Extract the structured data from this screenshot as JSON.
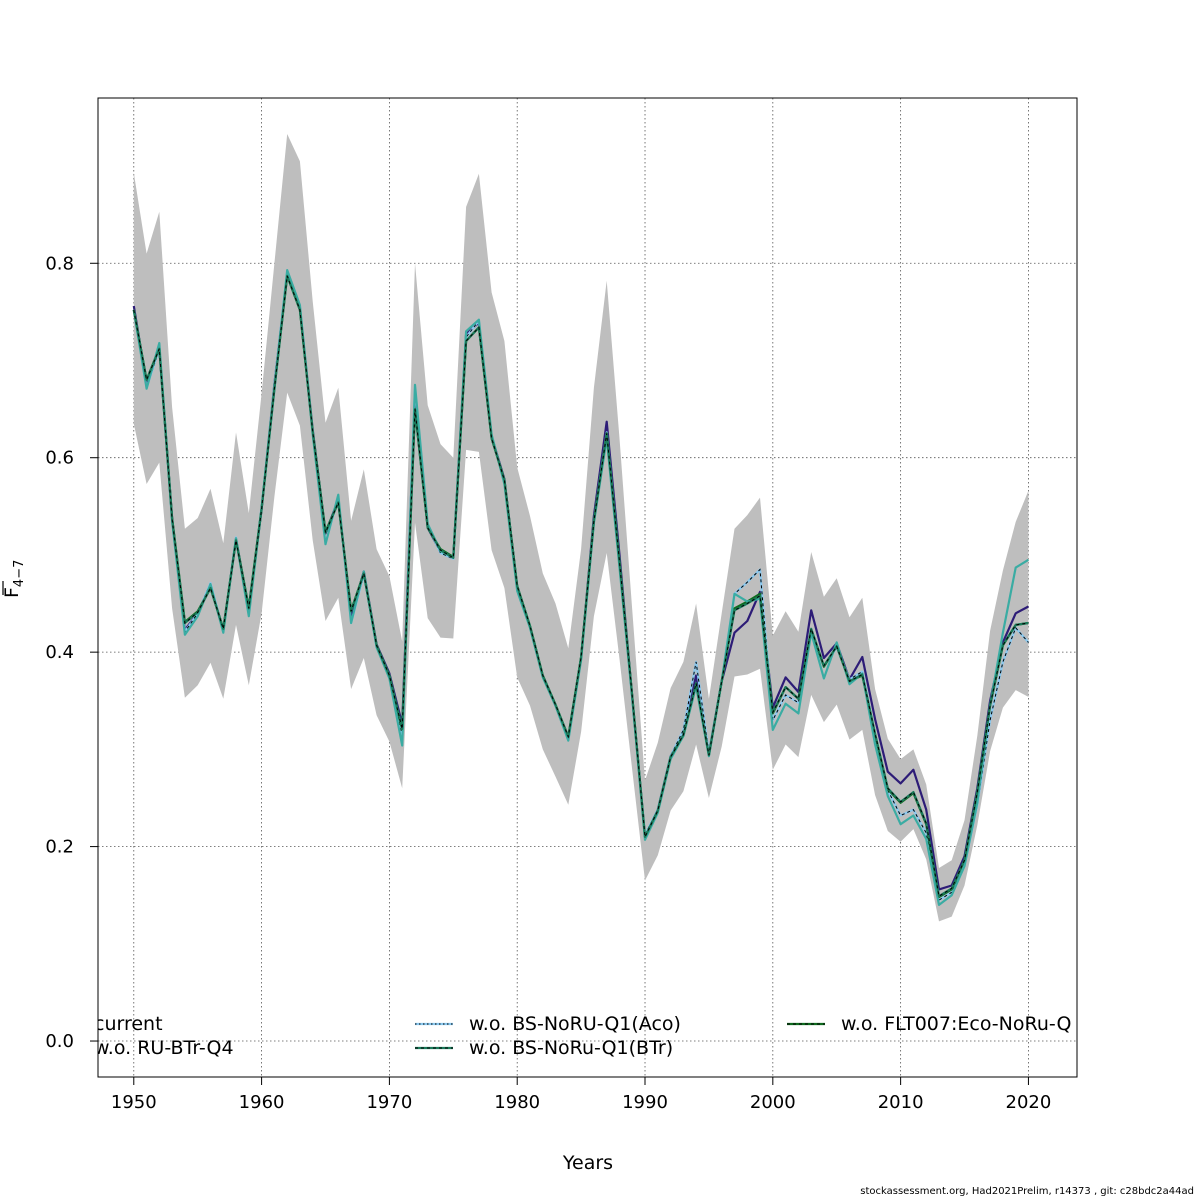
{
  "chart_data": {
    "type": "line",
    "title": "",
    "xlabel": "Years",
    "ylabel_main": "F",
    "ylabel_sub": "4−7",
    "xlim": [
      1947.2,
      2023.8
    ],
    "ylim": [
      -0.037,
      0.97
    ],
    "xticks": [
      1950,
      1960,
      1970,
      1980,
      1990,
      2000,
      2010,
      2020
    ],
    "yticks": [
      0.0,
      0.2,
      0.4,
      0.6,
      0.8
    ],
    "ytick_labels": [
      "0.0",
      "0.2",
      "0.4",
      "0.6",
      "0.8"
    ],
    "grid": true,
    "x": [
      1950,
      1951,
      1952,
      1953,
      1954,
      1955,
      1956,
      1957,
      1958,
      1959,
      1960,
      1961,
      1962,
      1963,
      1964,
      1965,
      1966,
      1967,
      1968,
      1969,
      1970,
      1971,
      1972,
      1973,
      1974,
      1975,
      1976,
      1977,
      1978,
      1979,
      1980,
      1981,
      1982,
      1983,
      1984,
      1985,
      1986,
      1987,
      1988,
      1989,
      1990,
      1991,
      1992,
      1993,
      1994,
      1995,
      1996,
      1997,
      1998,
      1999,
      2000,
      2001,
      2002,
      2003,
      2004,
      2005,
      2006,
      2007,
      2008,
      2009,
      2010,
      2011,
      2012,
      2013,
      2014,
      2015,
      2016,
      2017,
      2018,
      2019,
      2020
    ],
    "band": {
      "color": "#bebebe",
      "lower": [
        0.635,
        0.573,
        0.595,
        0.445,
        0.353,
        0.366,
        0.389,
        0.352,
        0.428,
        0.366,
        0.44,
        0.56,
        0.667,
        0.633,
        0.515,
        0.432,
        0.456,
        0.362,
        0.394,
        0.335,
        0.308,
        0.26,
        0.533,
        0.435,
        0.415,
        0.414,
        0.608,
        0.606,
        0.505,
        0.466,
        0.374,
        0.345,
        0.3,
        0.272,
        0.243,
        0.318,
        0.437,
        0.502,
        0.393,
        0.279,
        0.165,
        0.191,
        0.237,
        0.257,
        0.305,
        0.25,
        0.303,
        0.375,
        0.377,
        0.383,
        0.279,
        0.305,
        0.292,
        0.356,
        0.328,
        0.346,
        0.31,
        0.32,
        0.253,
        0.216,
        0.205,
        0.218,
        0.187,
        0.123,
        0.128,
        0.16,
        0.222,
        0.298,
        0.343,
        0.361,
        0.354
      ],
      "upper": [
        0.893,
        0.81,
        0.853,
        0.652,
        0.527,
        0.538,
        0.568,
        0.512,
        0.626,
        0.543,
        0.666,
        0.8,
        0.933,
        0.905,
        0.761,
        0.636,
        0.672,
        0.535,
        0.588,
        0.506,
        0.478,
        0.411,
        0.8,
        0.654,
        0.614,
        0.6,
        0.858,
        0.892,
        0.77,
        0.72,
        0.59,
        0.54,
        0.481,
        0.45,
        0.404,
        0.506,
        0.672,
        0.782,
        0.62,
        0.444,
        0.268,
        0.307,
        0.363,
        0.39,
        0.45,
        0.352,
        0.44,
        0.527,
        0.541,
        0.559,
        0.417,
        0.442,
        0.421,
        0.503,
        0.457,
        0.476,
        0.436,
        0.456,
        0.362,
        0.311,
        0.29,
        0.3,
        0.264,
        0.178,
        0.186,
        0.227,
        0.314,
        0.422,
        0.484,
        0.534,
        0.566
      ]
    },
    "series": [
      {
        "name": "current",
        "color": "#2d1c77",
        "dashed": false,
        "legend_style": "solid",
        "values": [
          0.756,
          0.676,
          0.713,
          0.538,
          0.423,
          0.44,
          0.468,
          0.422,
          0.517,
          0.443,
          0.547,
          0.676,
          0.789,
          0.754,
          0.629,
          0.522,
          0.557,
          0.437,
          0.483,
          0.408,
          0.378,
          0.326,
          0.665,
          0.528,
          0.503,
          0.497,
          0.727,
          0.739,
          0.622,
          0.578,
          0.467,
          0.426,
          0.375,
          0.345,
          0.311,
          0.394,
          0.54,
          0.637,
          0.5,
          0.354,
          0.211,
          0.238,
          0.293,
          0.318,
          0.376,
          0.296,
          0.37,
          0.42,
          0.432,
          0.462,
          0.343,
          0.374,
          0.359,
          0.443,
          0.394,
          0.409,
          0.372,
          0.395,
          0.331,
          0.277,
          0.265,
          0.279,
          0.238,
          0.156,
          0.16,
          0.19,
          0.26,
          0.35,
          0.41,
          0.44,
          0.447
        ]
      },
      {
        "name": "w.o. BS-NoRU-Q1(Aco)",
        "color": "#89c8ef",
        "dashed": true,
        "legend_style": "dotted",
        "values": [
          0.752,
          0.672,
          0.712,
          0.535,
          0.421,
          0.44,
          0.471,
          0.422,
          0.518,
          0.439,
          0.55,
          0.675,
          0.792,
          0.756,
          0.628,
          0.512,
          0.56,
          0.43,
          0.48,
          0.405,
          0.376,
          0.315,
          0.673,
          0.53,
          0.502,
          0.496,
          0.724,
          0.741,
          0.622,
          0.576,
          0.465,
          0.426,
          0.375,
          0.345,
          0.311,
          0.394,
          0.535,
          0.626,
          0.492,
          0.352,
          0.212,
          0.238,
          0.293,
          0.32,
          0.39,
          0.296,
          0.37,
          0.46,
          0.472,
          0.485,
          0.33,
          0.356,
          0.348,
          0.42,
          0.385,
          0.405,
          0.372,
          0.38,
          0.315,
          0.258,
          0.232,
          0.238,
          0.214,
          0.145,
          0.153,
          0.18,
          0.243,
          0.33,
          0.39,
          0.425,
          0.41
        ]
      },
      {
        "name": "w.o. FLT007:Eco-NoRu-Q",
        "color": "#0f6b1f",
        "dashed": false,
        "legend_style": "dashed",
        "values": [
          0.752,
          0.68,
          0.713,
          0.538,
          0.431,
          0.442,
          0.466,
          0.424,
          0.516,
          0.446,
          0.548,
          0.672,
          0.787,
          0.752,
          0.627,
          0.524,
          0.554,
          0.443,
          0.481,
          0.407,
          0.376,
          0.32,
          0.65,
          0.528,
          0.506,
          0.498,
          0.72,
          0.734,
          0.62,
          0.577,
          0.468,
          0.427,
          0.376,
          0.346,
          0.313,
          0.395,
          0.535,
          0.625,
          0.493,
          0.355,
          0.21,
          0.237,
          0.292,
          0.314,
          0.367,
          0.294,
          0.37,
          0.445,
          0.452,
          0.46,
          0.337,
          0.364,
          0.352,
          0.423,
          0.385,
          0.406,
          0.37,
          0.376,
          0.315,
          0.259,
          0.245,
          0.255,
          0.223,
          0.148,
          0.156,
          0.186,
          0.256,
          0.345,
          0.407,
          0.428,
          0.43
        ]
      },
      {
        "name": "w.o. RU-BTr-Q4",
        "color": "#3aaca3",
        "dashed": false,
        "legend_style": "solid",
        "values": [
          0.752,
          0.671,
          0.718,
          0.535,
          0.418,
          0.437,
          0.47,
          0.42,
          0.517,
          0.437,
          0.548,
          0.67,
          0.793,
          0.757,
          0.624,
          0.511,
          0.562,
          0.43,
          0.483,
          0.405,
          0.373,
          0.304,
          0.675,
          0.532,
          0.504,
          0.497,
          0.73,
          0.742,
          0.624,
          0.573,
          0.463,
          0.425,
          0.374,
          0.345,
          0.309,
          0.392,
          0.533,
          0.62,
          0.487,
          0.353,
          0.207,
          0.235,
          0.29,
          0.314,
          0.365,
          0.293,
          0.37,
          0.46,
          0.452,
          0.455,
          0.32,
          0.347,
          0.337,
          0.42,
          0.373,
          0.41,
          0.367,
          0.378,
          0.305,
          0.252,
          0.223,
          0.232,
          0.208,
          0.14,
          0.15,
          0.18,
          0.245,
          0.345,
          0.42,
          0.487,
          0.495
        ]
      },
      {
        "name": "w.o. BS-NoRu-Q1(BTr)",
        "color": "#1a7a5a",
        "dashed": true,
        "legend_style": "dashed",
        "values": [
          0.752,
          0.68,
          0.712,
          0.537,
          0.43,
          0.441,
          0.466,
          0.424,
          0.515,
          0.445,
          0.547,
          0.671,
          0.787,
          0.752,
          0.627,
          0.523,
          0.554,
          0.442,
          0.481,
          0.407,
          0.376,
          0.321,
          0.65,
          0.528,
          0.505,
          0.497,
          0.72,
          0.734,
          0.62,
          0.577,
          0.468,
          0.427,
          0.376,
          0.346,
          0.313,
          0.395,
          0.535,
          0.625,
          0.493,
          0.355,
          0.21,
          0.237,
          0.292,
          0.315,
          0.368,
          0.294,
          0.37,
          0.443,
          0.45,
          0.458,
          0.338,
          0.364,
          0.352,
          0.424,
          0.386,
          0.406,
          0.37,
          0.377,
          0.316,
          0.26,
          0.246,
          0.256,
          0.224,
          0.149,
          0.157,
          0.186,
          0.256,
          0.345,
          0.407,
          0.428,
          0.43
        ]
      }
    ],
    "legend": {
      "placement": "bottom, three columns",
      "rows": [
        [
          "current",
          "w.o. BS-NoRU-Q1(Aco)",
          "w.o. FLT007:Eco-NoRu-Q"
        ],
        [
          "w.o. RU-BTr-Q4",
          "w.o. BS-NoRu-Q1(BTr)"
        ]
      ]
    }
  },
  "footer": "stockassessment.org, Had2021Prelim, r14373 , git: c28bdc2a44ad"
}
